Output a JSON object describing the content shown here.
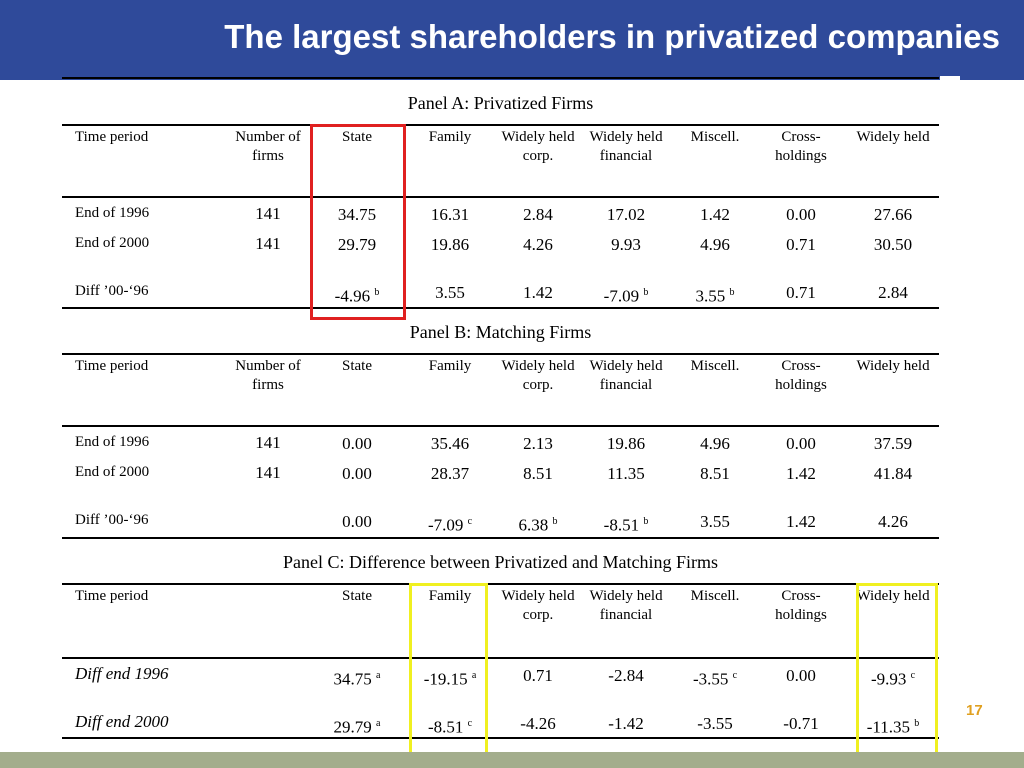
{
  "slide": {
    "title": "The largest shareholders in privatized companies",
    "page_number": "17"
  },
  "columns": {
    "time_period": "Time period",
    "number_of_firms": "Number of firms",
    "state": "State",
    "family": "Family",
    "widely_held_corp": "Widely held corp.",
    "widely_held_financial": "Widely held financial",
    "miscell": "Miscell.",
    "cross_holdings": "Cross-holdings",
    "widely_held": "Widely held"
  },
  "panels": [
    {
      "title": "Panel A: Privatized Firms",
      "rows": [
        {
          "label": "End of 1996",
          "firms": "141",
          "values": [
            [
              "34.75",
              ""
            ],
            [
              "16.31",
              ""
            ],
            [
              "2.84",
              ""
            ],
            [
              "17.02",
              ""
            ],
            [
              "1.42",
              ""
            ],
            [
              "0.00",
              ""
            ],
            [
              "27.66",
              ""
            ]
          ]
        },
        {
          "label": "End of 2000",
          "firms": "141",
          "values": [
            [
              "29.79",
              ""
            ],
            [
              "19.86",
              ""
            ],
            [
              "4.26",
              ""
            ],
            [
              "9.93",
              ""
            ],
            [
              "4.96",
              ""
            ],
            [
              "0.71",
              ""
            ],
            [
              "30.50",
              ""
            ]
          ]
        },
        {
          "label": "Diff  ’00-‘96",
          "firms": "",
          "values": [
            [
              "-4.96",
              "b"
            ],
            [
              "3.55",
              ""
            ],
            [
              "1.42",
              ""
            ],
            [
              "-7.09",
              "b"
            ],
            [
              "3.55",
              "b"
            ],
            [
              "0.71",
              ""
            ],
            [
              "2.84",
              ""
            ]
          ]
        }
      ]
    },
    {
      "title": "Panel B: Matching Firms",
      "rows": [
        {
          "label": "End of 1996",
          "firms": "141",
          "values": [
            [
              "0.00",
              ""
            ],
            [
              "35.46",
              ""
            ],
            [
              "2.13",
              ""
            ],
            [
              "19.86",
              ""
            ],
            [
              "4.96",
              ""
            ],
            [
              "0.00",
              ""
            ],
            [
              "37.59",
              ""
            ]
          ]
        },
        {
          "label": "End of 2000",
          "firms": "141",
          "values": [
            [
              "0.00",
              ""
            ],
            [
              "28.37",
              ""
            ],
            [
              "8.51",
              ""
            ],
            [
              "11.35",
              ""
            ],
            [
              "8.51",
              ""
            ],
            [
              "1.42",
              ""
            ],
            [
              "41.84",
              ""
            ]
          ]
        },
        {
          "label": "Diff  ’00-‘96",
          "firms": "",
          "values": [
            [
              "0.00",
              ""
            ],
            [
              "-7.09",
              "c"
            ],
            [
              "6.38",
              "b"
            ],
            [
              "-8.51",
              "b"
            ],
            [
              "3.55",
              ""
            ],
            [
              "1.42",
              ""
            ],
            [
              "4.26",
              ""
            ]
          ]
        }
      ]
    },
    {
      "title": "Panel C: Difference between Privatized and Matching Firms",
      "rows": [
        {
          "label": "Diff end 1996",
          "firms": "",
          "values": [
            [
              "34.75",
              "a"
            ],
            [
              "-19.15",
              "a"
            ],
            [
              "0.71",
              ""
            ],
            [
              "-2.84",
              ""
            ],
            [
              "-3.55",
              "c"
            ],
            [
              "0.00",
              ""
            ],
            [
              "-9.93",
              "c"
            ]
          ]
        },
        {
          "label": "Diff end 2000",
          "firms": "",
          "values": [
            [
              "29.79",
              "a"
            ],
            [
              "-8.51",
              "c"
            ],
            [
              "-4.26",
              ""
            ],
            [
              "-1.42",
              ""
            ],
            [
              "-3.55",
              ""
            ],
            [
              "-0.71",
              ""
            ],
            [
              "-11.35",
              "b"
            ]
          ]
        }
      ]
    }
  ],
  "highlights": {
    "red": "#e02020",
    "yellow": "#f0f020"
  }
}
